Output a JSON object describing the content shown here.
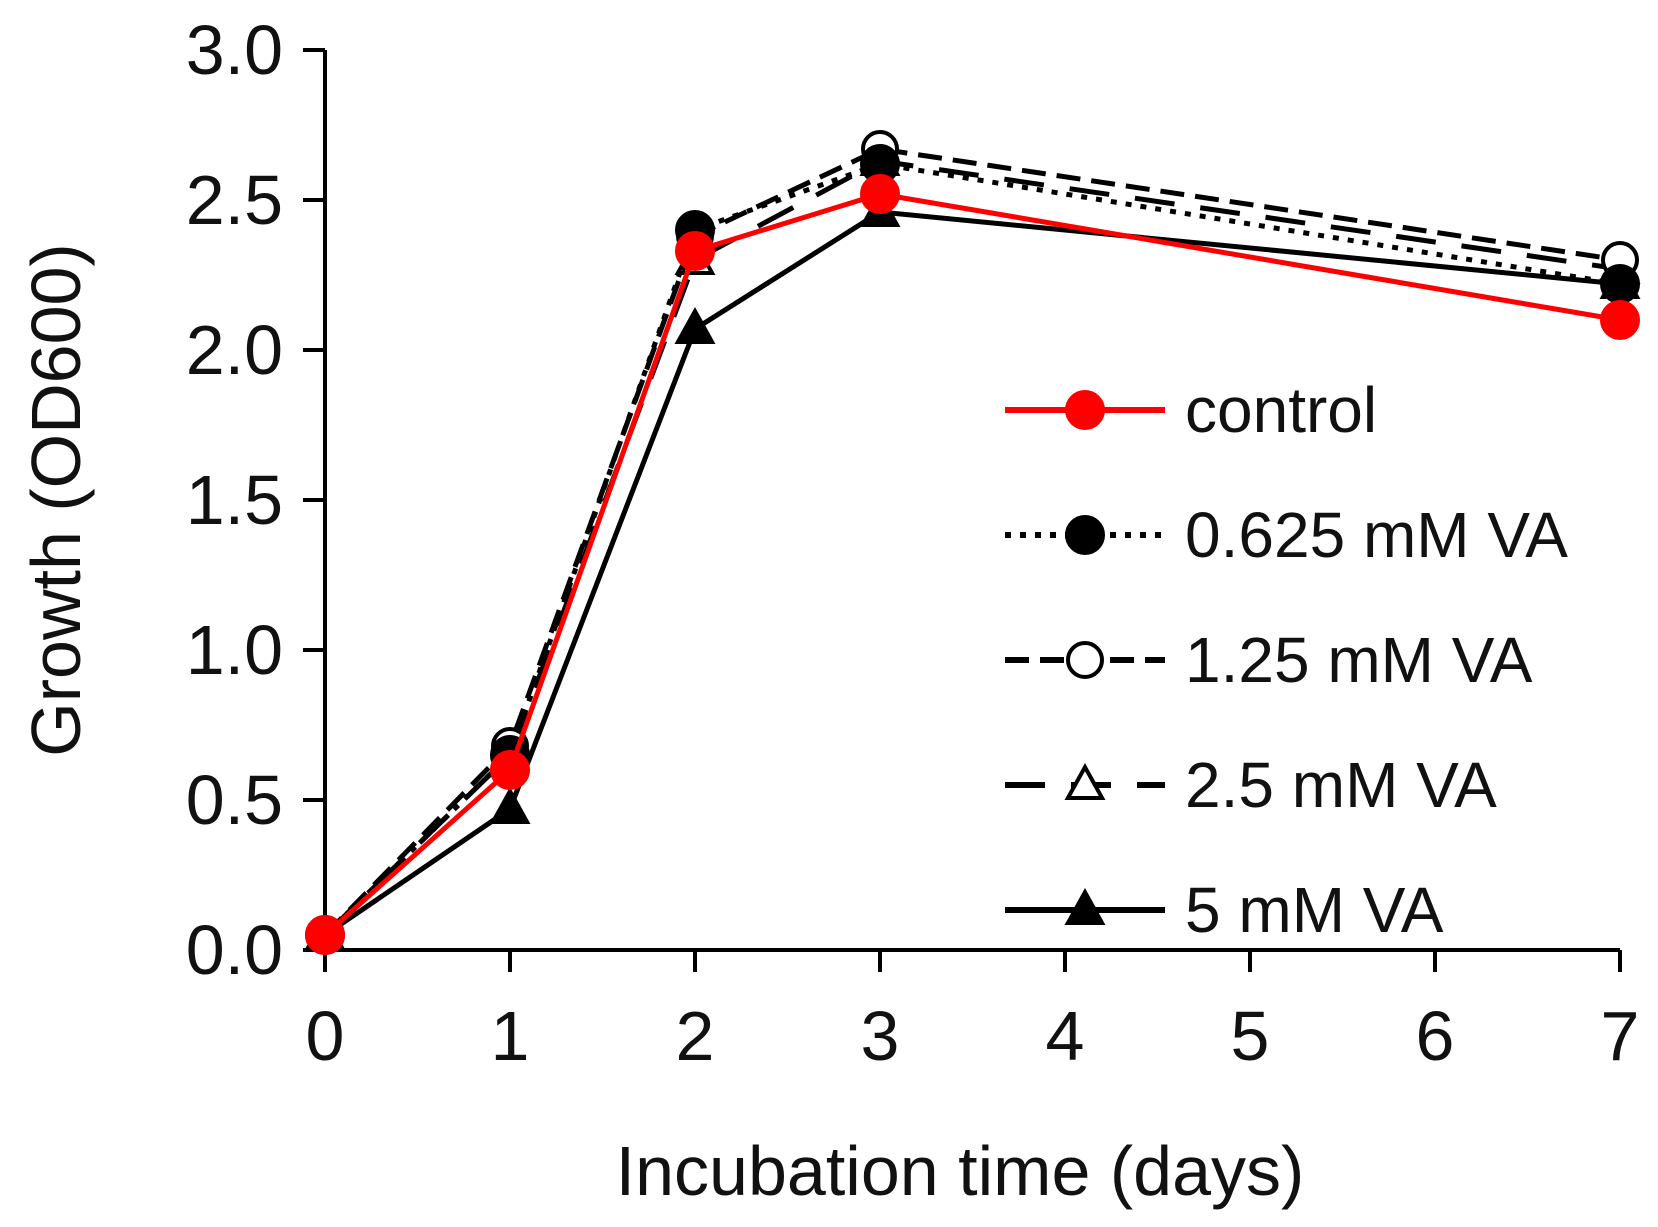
{
  "chart_data": {
    "type": "line",
    "title": "",
    "xlabel": "Incubation time (days)",
    "ylabel": "Growth (OD600)",
    "xlim": [
      0,
      7
    ],
    "ylim": [
      0,
      3
    ],
    "x_ticks": [
      0,
      1,
      2,
      3,
      4,
      5,
      6,
      7
    ],
    "x_tick_labels": [
      "0",
      "1",
      "2",
      "3",
      "4",
      "5",
      "6",
      "7"
    ],
    "y_ticks": [
      0,
      0.5,
      1,
      1.5,
      2,
      2.5,
      3
    ],
    "y_tick_labels": [
      "0.0",
      "0.5",
      "1.0",
      "1.5",
      "2.0",
      "2.5",
      "3.0"
    ],
    "grid": false,
    "legend_position": "right",
    "series": [
      {
        "name": "control",
        "color": "#ff0000",
        "line_style": "solid",
        "marker": "filled-circle",
        "x": [
          0,
          1,
          2,
          3,
          7
        ],
        "y": [
          0.05,
          0.6,
          2.33,
          2.52,
          2.1
        ]
      },
      {
        "name": "0.625 mM VA",
        "color": "#000000",
        "line_style": "dotted",
        "marker": "filled-circle",
        "x": [
          0,
          1,
          2,
          3,
          7
        ],
        "y": [
          0.05,
          0.65,
          2.4,
          2.62,
          2.22
        ]
      },
      {
        "name": "1.25 mM VA",
        "color": "#000000",
        "line_style": "dashed",
        "marker": "open-circle",
        "x": [
          0,
          1,
          2,
          3,
          7
        ],
        "y": [
          0.05,
          0.68,
          2.38,
          2.67,
          2.3
        ]
      },
      {
        "name": "2.5 mM VA",
        "color": "#000000",
        "line_style": "long-dashed",
        "marker": "open-triangle",
        "x": [
          0,
          1,
          2,
          3,
          7
        ],
        "y": [
          0.05,
          0.65,
          2.3,
          2.63,
          2.27
        ]
      },
      {
        "name": "5 mM VA",
        "color": "#000000",
        "line_style": "solid",
        "marker": "filled-triangle",
        "x": [
          0,
          1,
          2,
          3,
          7
        ],
        "y": [
          0.05,
          0.47,
          2.07,
          2.46,
          2.22
        ]
      }
    ]
  }
}
